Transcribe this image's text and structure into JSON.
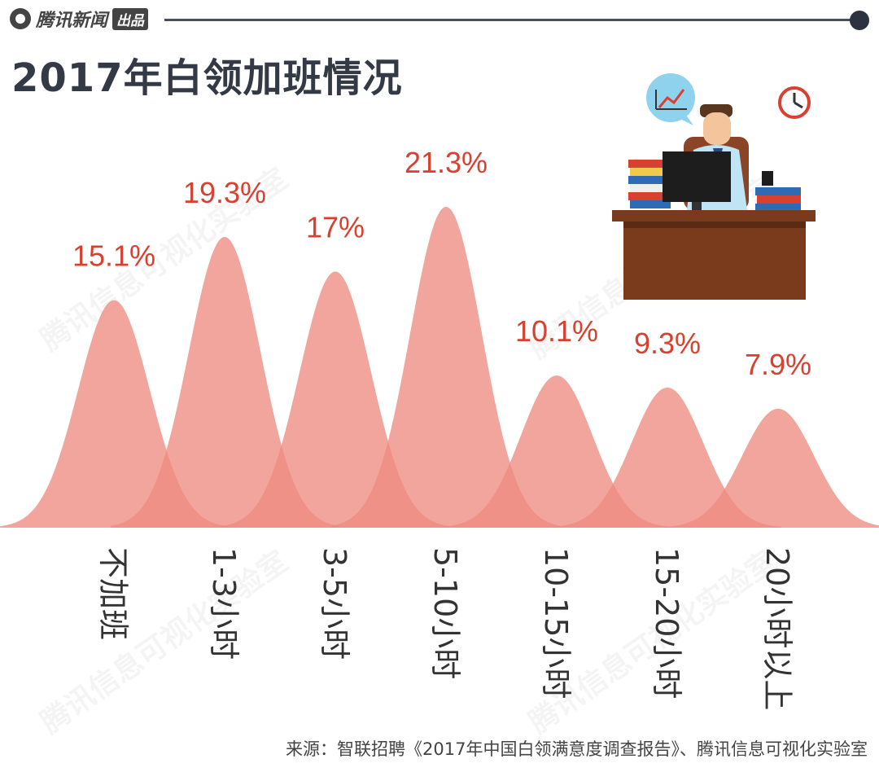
{
  "header": {
    "brand": "腾讯新闻",
    "brand_badge": "出品"
  },
  "title": "2017年白领加班情况",
  "source": "来源：智联招聘《2017年中国白领满意度调查报告》、腾讯信息可视化实验室",
  "watermark": "腾讯信息可视化实验室",
  "colors": {
    "curve": "#ee8c80",
    "overlap": "#e0584c",
    "value_label": "#d8402f",
    "category_label": "#333333"
  },
  "chart_data": {
    "type": "area",
    "categories": [
      "不加班",
      "1-3小时",
      "3-5小时",
      "5-10小时",
      "10-15小时",
      "15-20小时",
      "20小时以上"
    ],
    "values": [
      15.1,
      19.3,
      17,
      21.3,
      10.1,
      9.3,
      7.9
    ],
    "value_labels": [
      "15.1%",
      "19.3%",
      "17%",
      "21.3%",
      "10.1%",
      "9.3%",
      "7.9%"
    ]
  }
}
